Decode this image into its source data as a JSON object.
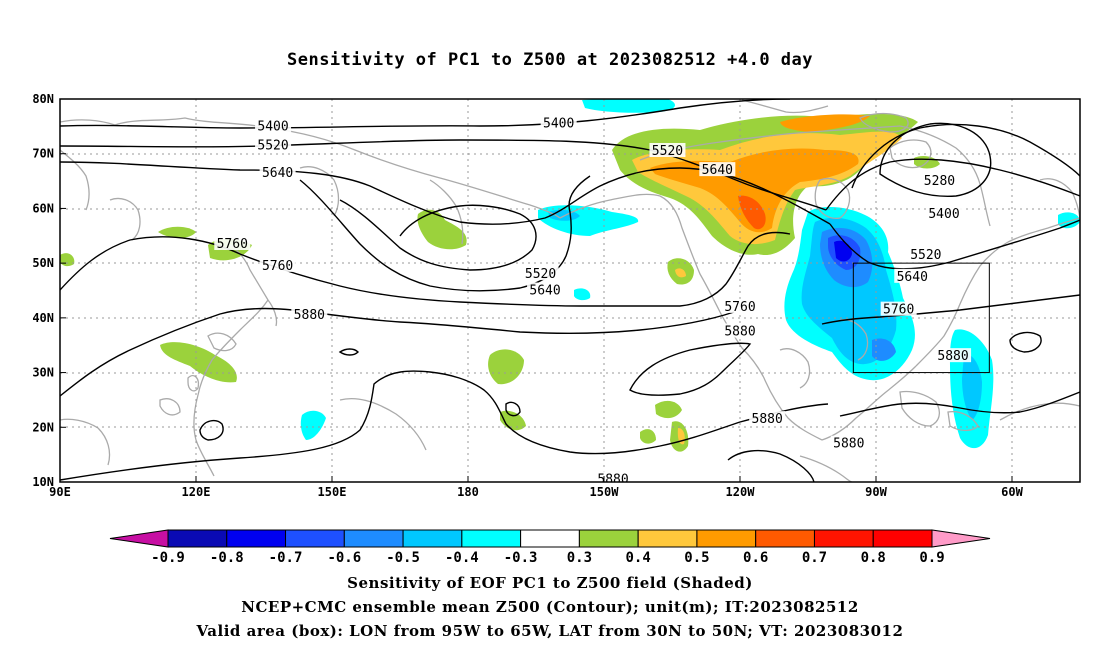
{
  "title": "Sensitivity of PC1 to Z500 at 2023082512 +4.0 day",
  "lat_labels": [
    {
      "label": "80N",
      "lat": 80
    },
    {
      "label": "70N",
      "lat": 70
    },
    {
      "label": "60N",
      "lat": 60
    },
    {
      "label": "50N",
      "lat": 50
    },
    {
      "label": "40N",
      "lat": 40
    },
    {
      "label": "30N",
      "lat": 30
    },
    {
      "label": "20N",
      "lat": 20
    },
    {
      "label": "10N",
      "lat": 10
    }
  ],
  "lon_labels": [
    {
      "label": "90E",
      "lon": 90
    },
    {
      "label": "120E",
      "lon": 120
    },
    {
      "label": "150E",
      "lon": 150
    },
    {
      "label": "180",
      "lon": 180
    },
    {
      "label": "150W",
      "lon": 210
    },
    {
      "label": "120W",
      "lon": 240
    },
    {
      "label": "90W",
      "lon": 270
    },
    {
      "label": "60W",
      "lon": 300
    }
  ],
  "contour_labels": [
    {
      "text": "5400",
      "lon": 137,
      "lat": 75
    },
    {
      "text": "5400",
      "lon": 200,
      "lat": 75.5
    },
    {
      "text": "5520",
      "lon": 137,
      "lat": 71.5
    },
    {
      "text": "5520",
      "lon": 224,
      "lat": 70.5
    },
    {
      "text": "5640",
      "lon": 138,
      "lat": 66.5
    },
    {
      "text": "5640",
      "lon": 235,
      "lat": 67
    },
    {
      "text": "5280",
      "lon": 284,
      "lat": 65
    },
    {
      "text": "5400",
      "lon": 285,
      "lat": 59
    },
    {
      "text": "5520",
      "lon": 281,
      "lat": 51.5
    },
    {
      "text": "5640",
      "lon": 278,
      "lat": 47.5
    },
    {
      "text": "5760",
      "lon": 128,
      "lat": 53.5
    },
    {
      "text": "5760",
      "lon": 138,
      "lat": 49.5
    },
    {
      "text": "5520",
      "lon": 196,
      "lat": 48
    },
    {
      "text": "5640",
      "lon": 197,
      "lat": 45
    },
    {
      "text": "5760",
      "lon": 240,
      "lat": 42
    },
    {
      "text": "5760",
      "lon": 275,
      "lat": 41.5
    },
    {
      "text": "5880",
      "lon": 145,
      "lat": 40.5
    },
    {
      "text": "5880",
      "lon": 240,
      "lat": 37.5
    },
    {
      "text": "5880",
      "lon": 287,
      "lat": 33
    },
    {
      "text": "5880",
      "lon": 246,
      "lat": 21.5
    },
    {
      "text": "5880",
      "lon": 264,
      "lat": 17
    },
    {
      "text": "5880",
      "lon": 212,
      "lat": 10.5
    }
  ],
  "valid_box": {
    "lon_min": 265,
    "lon_max": 295,
    "lat_min": 30,
    "lat_max": 50
  },
  "colorbar": {
    "labels": [
      "-0.9",
      "-0.8",
      "-0.7",
      "-0.6",
      "-0.5",
      "-0.4",
      "-0.3",
      "0.3",
      "0.4",
      "0.5",
      "0.6",
      "0.7",
      "0.8",
      "0.9"
    ],
    "colors": [
      "#c70fa3",
      "#0a0ab4",
      "#0000f0",
      "#1e50ff",
      "#1e8cff",
      "#00c8ff",
      "#00ffff",
      "#ffffff",
      "#9bd23c",
      "#ffc83c",
      "#ff9b00",
      "#ff5a00",
      "#ff1400",
      "#ff0000",
      "#ff9bc8"
    ]
  },
  "footer": {
    "line1": "Sensitivity of EOF PC1 to Z500 field (Shaded)",
    "line2": "NCEP+CMC ensemble mean Z500 (Contour); unit(m); IT:2023082512",
    "line3": "Valid area (box): LON from 95W to 65W, LAT from 30N to 50N; VT: 2023083012"
  }
}
